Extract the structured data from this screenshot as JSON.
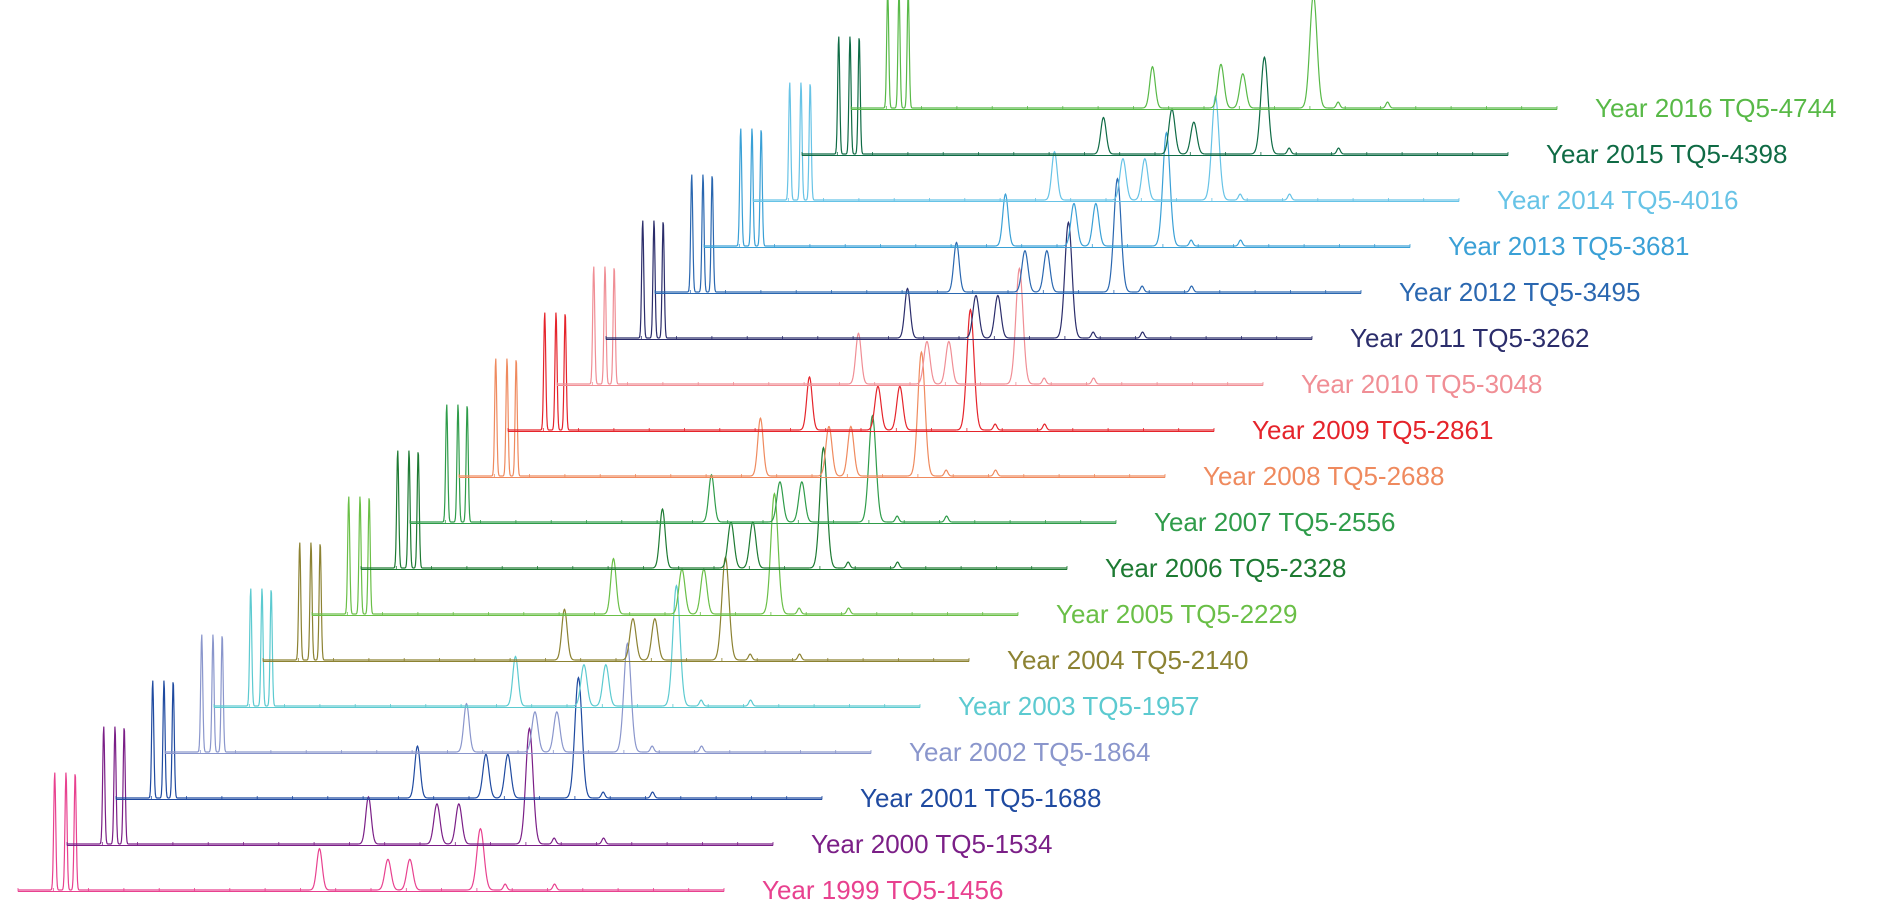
{
  "chart_data": {
    "type": "line",
    "layout": "waterfall",
    "title": "",
    "xlabel": "",
    "ylabel": "",
    "grid": false,
    "legend": "none",
    "x_range": [
      0,
      100
    ],
    "peaks_x": [
      5.2,
      6.8,
      8.1,
      42.7,
      52.4,
      55.5,
      65.5,
      69.0,
      76.0
    ],
    "series": [
      {
        "name": "Year 1999 TQ5-1456",
        "color": "#e8418f",
        "heights": [
          1.0,
          1.0,
          1.0,
          0.35,
          0.26,
          0.26,
          0.52,
          0.05,
          0.05
        ]
      },
      {
        "name": "Year 2000 TQ5-1534",
        "color": "#7b1f87",
        "heights": [
          1.0,
          1.0,
          1.0,
          0.4,
          0.34,
          0.34,
          0.98,
          0.05,
          0.05
        ]
      },
      {
        "name": "Year 2001 TQ5-1688",
        "color": "#1f4aa0",
        "heights": [
          1.0,
          1.0,
          1.0,
          0.44,
          0.37,
          0.37,
          1.02,
          0.05,
          0.05
        ]
      },
      {
        "name": "Year 2002 TQ5-1864",
        "color": "#8a96cc",
        "heights": [
          1.0,
          1.0,
          1.0,
          0.41,
          0.34,
          0.34,
          0.92,
          0.05,
          0.05
        ]
      },
      {
        "name": "Year 2003 TQ5-1957",
        "color": "#5ccad0",
        "heights": [
          1.0,
          1.0,
          1.0,
          0.42,
          0.35,
          0.35,
          1.02,
          0.05,
          0.05
        ]
      },
      {
        "name": "Year 2004 TQ5-2140",
        "color": "#8c8232",
        "heights": [
          1.0,
          1.0,
          1.0,
          0.43,
          0.35,
          0.35,
          0.87,
          0.05,
          0.05
        ]
      },
      {
        "name": "Year 2005 TQ5-2229",
        "color": "#6abf47",
        "heights": [
          1.0,
          1.0,
          1.0,
          0.47,
          0.38,
          0.38,
          1.02,
          0.05,
          0.05
        ]
      },
      {
        "name": "Year 2006 TQ5-2328",
        "color": "#1d7a32",
        "heights": [
          1.0,
          1.0,
          1.0,
          0.5,
          0.39,
          0.39,
          1.02,
          0.05,
          0.05
        ]
      },
      {
        "name": "Year 2007 TQ5-2556",
        "color": "#2f9c4a",
        "heights": [
          1.0,
          1.0,
          1.0,
          0.4,
          0.34,
          0.34,
          0.9,
          0.05,
          0.05
        ]
      },
      {
        "name": "Year 2008 TQ5-2688",
        "color": "#ef8a5e",
        "heights": [
          1.0,
          1.0,
          1.0,
          0.49,
          0.42,
          0.42,
          1.05,
          0.05,
          0.05
        ]
      },
      {
        "name": "Year 2009 TQ5-2861",
        "color": "#e5242b",
        "heights": [
          1.0,
          1.0,
          1.0,
          0.45,
          0.37,
          0.37,
          1.02,
          0.05,
          0.05
        ]
      },
      {
        "name": "Year 2010 TQ5-3048",
        "color": "#f08e95",
        "heights": [
          1.0,
          1.0,
          1.0,
          0.43,
          0.36,
          0.36,
          0.98,
          0.05,
          0.05
        ]
      },
      {
        "name": "Year 2011 TQ5-3262",
        "color": "#2b2d6b",
        "heights": [
          1.0,
          1.0,
          1.0,
          0.42,
          0.36,
          0.36,
          0.98,
          0.05,
          0.05
        ]
      },
      {
        "name": "Year 2012 TQ5-3495",
        "color": "#2a67b0",
        "heights": [
          1.0,
          1.0,
          1.0,
          0.42,
          0.35,
          0.35,
          0.96,
          0.05,
          0.05
        ]
      },
      {
        "name": "Year 2013 TQ5-3681",
        "color": "#3aa0d6",
        "heights": [
          1.0,
          1.0,
          1.0,
          0.44,
          0.36,
          0.36,
          0.96,
          0.05,
          0.05
        ]
      },
      {
        "name": "Year 2014 TQ5-4016",
        "color": "#67c3e6",
        "heights": [
          1.0,
          1.0,
          1.0,
          0.41,
          0.35,
          0.35,
          0.88,
          0.05,
          0.05
        ]
      },
      {
        "name": "Year 2015 TQ5-4398",
        "color": "#0f6b45",
        "heights": [
          1.0,
          1.0,
          1.0,
          0.31,
          0.38,
          0.27,
          0.82,
          0.05,
          0.05
        ]
      },
      {
        "name": "Year 2016 TQ5-4744",
        "color": "#58b947",
        "heights": [
          1.0,
          1.0,
          1.0,
          0.35,
          0.37,
          0.29,
          0.96,
          0.05,
          0.05
        ]
      }
    ]
  }
}
